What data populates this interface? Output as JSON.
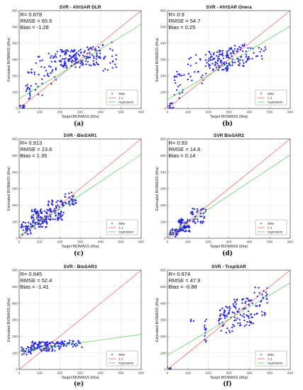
{
  "chart_data": [
    {
      "type": "scatter",
      "letter": "(a)",
      "title": "SVR - AfriSAR DLR",
      "stats": [
        "R= 0.878",
        "RMSE = 65.6",
        "Bias = -1.28"
      ],
      "xlabel": "Target BIOMASS (t/ha)",
      "ylabel": "Estimated BIOMASS (t/ha)",
      "xlim": [
        0,
        600
      ],
      "ylim": [
        0,
        600
      ],
      "xticks": [
        0,
        100,
        200,
        300,
        400,
        500,
        600
      ],
      "yticks": [
        0,
        100,
        200,
        300,
        400,
        500,
        600
      ],
      "grid": true,
      "legend_position": "bottom-right",
      "legend": [
        "data",
        "1:1",
        "regression"
      ],
      "regression": {
        "intercept": 60,
        "slope": 0.76
      },
      "clusters": [
        {
          "x": [
            0,
            30
          ],
          "y": [
            0,
            20
          ],
          "n": 10
        },
        {
          "x": [
            30,
            60
          ],
          "y": [
            40,
            250
          ],
          "n": 18
        },
        {
          "x": [
            60,
            140
          ],
          "y": [
            80,
            330
          ],
          "n": 22
        },
        {
          "x": [
            140,
            200
          ],
          "y": [
            150,
            350
          ],
          "n": 25
        },
        {
          "x": [
            200,
            300
          ],
          "y": [
            250,
            360
          ],
          "n": 85
        },
        {
          "x": [
            300,
            400
          ],
          "y": [
            260,
            380
          ],
          "n": 60
        },
        {
          "x": [
            400,
            480
          ],
          "y": [
            230,
            420
          ],
          "n": 20
        }
      ]
    },
    {
      "type": "scatter",
      "letter": "(b)",
      "title": "SVR - AfriSAR Onera",
      "stats": [
        "R= 0.9",
        "RMSE = 54.7",
        "Bias = 0.25"
      ],
      "xlabel": "Target BIOMASS (t/ha)",
      "ylabel": "Estimated BIOMASS (t/ha)",
      "xlim": [
        0,
        600
      ],
      "ylim": [
        0,
        600
      ],
      "xticks": [
        0,
        100,
        200,
        300,
        400,
        500,
        600
      ],
      "yticks": [
        0,
        100,
        200,
        300,
        400,
        500,
        600
      ],
      "grid": true,
      "legend_position": "bottom-right",
      "legend": [
        "data",
        "1:1",
        "regression"
      ],
      "regression": {
        "intercept": 55,
        "slope": 0.75
      },
      "clusters": [
        {
          "x": [
            0,
            30
          ],
          "y": [
            0,
            40
          ],
          "n": 12
        },
        {
          "x": [
            30,
            80
          ],
          "y": [
            60,
            230
          ],
          "n": 18
        },
        {
          "x": [
            80,
            200
          ],
          "y": [
            150,
            330
          ],
          "n": 25
        },
        {
          "x": [
            200,
            300
          ],
          "y": [
            230,
            360
          ],
          "n": 85
        },
        {
          "x": [
            300,
            400
          ],
          "y": [
            260,
            400
          ],
          "n": 60
        },
        {
          "x": [
            400,
            480
          ],
          "y": [
            300,
            380
          ],
          "n": 15
        }
      ]
    },
    {
      "type": "scatter",
      "letter": "(c)",
      "title": "SVR - BioSAR1",
      "stats": [
        "R= 0.913",
        "RMSE = 23.6",
        "Bias = 1.35"
      ],
      "xlabel": "Target BIOMASS (t/ha)",
      "ylabel": "Estimated BIOMASS (t/ha)",
      "xlim": [
        0,
        600
      ],
      "ylim": [
        0,
        600
      ],
      "xticks": [
        0,
        100,
        200,
        300,
        400,
        500,
        600
      ],
      "yticks": [
        0,
        100,
        200,
        300,
        400,
        500,
        600
      ],
      "grid": true,
      "legend_position": "bottom-right",
      "legend": [
        "data",
        "1:1",
        "regression"
      ],
      "regression": {
        "intercept": 15,
        "slope": 0.82
      },
      "clusters": [
        {
          "x": [
            10,
            60
          ],
          "y": [
            20,
            100
          ],
          "n": 35
        },
        {
          "x": [
            60,
            140
          ],
          "y": [
            60,
            180
          ],
          "n": 90
        },
        {
          "x": [
            140,
            220
          ],
          "y": [
            110,
            230
          ],
          "n": 80
        },
        {
          "x": [
            220,
            280
          ],
          "y": [
            200,
            280
          ],
          "n": 30
        }
      ]
    },
    {
      "type": "scatter",
      "letter": "(d)",
      "title": "SVR BioSAR2",
      "stats": [
        "R= 0.93",
        "RMSE = 14.6",
        "Bias = 0.14"
      ],
      "xlabel": "Target BIOMASS (t/ha)",
      "ylabel": "Estimated BIOMASS (t/ha)",
      "xlim": [
        0,
        600
      ],
      "ylim": [
        0,
        600
      ],
      "xticks": [
        0,
        100,
        200,
        300,
        400,
        500,
        600
      ],
      "yticks": [
        0,
        100,
        200,
        300,
        400,
        500,
        600
      ],
      "grid": true,
      "legend_position": "bottom-right",
      "legend": [
        "data",
        "1:1",
        "regression"
      ],
      "regression": {
        "intercept": 12,
        "slope": 0.82
      },
      "clusters": [
        {
          "x": [
            10,
            50
          ],
          "y": [
            10,
            60
          ],
          "n": 30
        },
        {
          "x": [
            50,
            110
          ],
          "y": [
            40,
            120
          ],
          "n": 70
        },
        {
          "x": [
            110,
            190
          ],
          "y": [
            90,
            180
          ],
          "n": 40
        }
      ]
    },
    {
      "type": "scatter",
      "letter": "(e)",
      "title": "SVR - BioSAR3",
      "stats": [
        "R= 0.645",
        "RMSE = 52.4",
        "Bias = -1.41"
      ],
      "xlabel": "Target BIOMASS (t/ha)",
      "ylabel": "Estimated BIOMASS (t/ha)",
      "xlim": [
        0,
        600
      ],
      "ylim": [
        0,
        600
      ],
      "xticks": [
        0,
        100,
        200,
        300,
        400,
        500,
        600
      ],
      "yticks": [
        0,
        100,
        200,
        300,
        400,
        500,
        600
      ],
      "grid": true,
      "legend_position": "bottom-right",
      "legend": [
        "data",
        "1:1",
        "regression"
      ],
      "regression": {
        "intercept": 110,
        "slope": 0.17
      },
      "clusters": [
        {
          "x": [
            10,
            60
          ],
          "y": [
            90,
            140
          ],
          "n": 25
        },
        {
          "x": [
            60,
            200
          ],
          "y": [
            110,
            170
          ],
          "n": 100
        },
        {
          "x": [
            200,
            310
          ],
          "y": [
            130,
            175
          ],
          "n": 40
        }
      ]
    },
    {
      "type": "scatter",
      "letter": "(f)",
      "title": "SVR - TropiSAR",
      "stats": [
        "R= 0.874",
        "RMSE = 47.9",
        "Bias = -0.88"
      ],
      "xlabel": "Target BIOMASS (t/ha)",
      "ylabel": "Estimated BIOMASS (t/ha)",
      "xlim": [
        0,
        600
      ],
      "ylim": [
        0,
        600
      ],
      "xticks": [
        0,
        100,
        200,
        300,
        400,
        500,
        600
      ],
      "yticks": [
        0,
        100,
        200,
        300,
        400,
        500,
        600
      ],
      "grid": true,
      "legend_position": "bottom-right",
      "legend": [
        "data",
        "1:1",
        "regression"
      ],
      "regression": {
        "intercept": 85,
        "slope": 0.73
      },
      "clusters": [
        {
          "x": [
            0,
            20
          ],
          "y": [
            0,
            20
          ],
          "n": 6
        },
        {
          "x": [
            110,
            130
          ],
          "y": [
            290,
            310
          ],
          "n": 4
        },
        {
          "x": [
            180,
            190
          ],
          "y": [
            160,
            330
          ],
          "n": 12
        },
        {
          "x": [
            250,
            320
          ],
          "y": [
            220,
            380
          ],
          "n": 45
        },
        {
          "x": [
            320,
            420
          ],
          "y": [
            260,
            430
          ],
          "n": 70
        },
        {
          "x": [
            420,
            490
          ],
          "y": [
            320,
            500
          ],
          "n": 30
        }
      ]
    }
  ],
  "colors": {
    "data": "#2020e0",
    "one_to_one": "#ff4040",
    "regression": "#33cc33",
    "grid": "#e3e3e3",
    "axis": "#333333"
  }
}
